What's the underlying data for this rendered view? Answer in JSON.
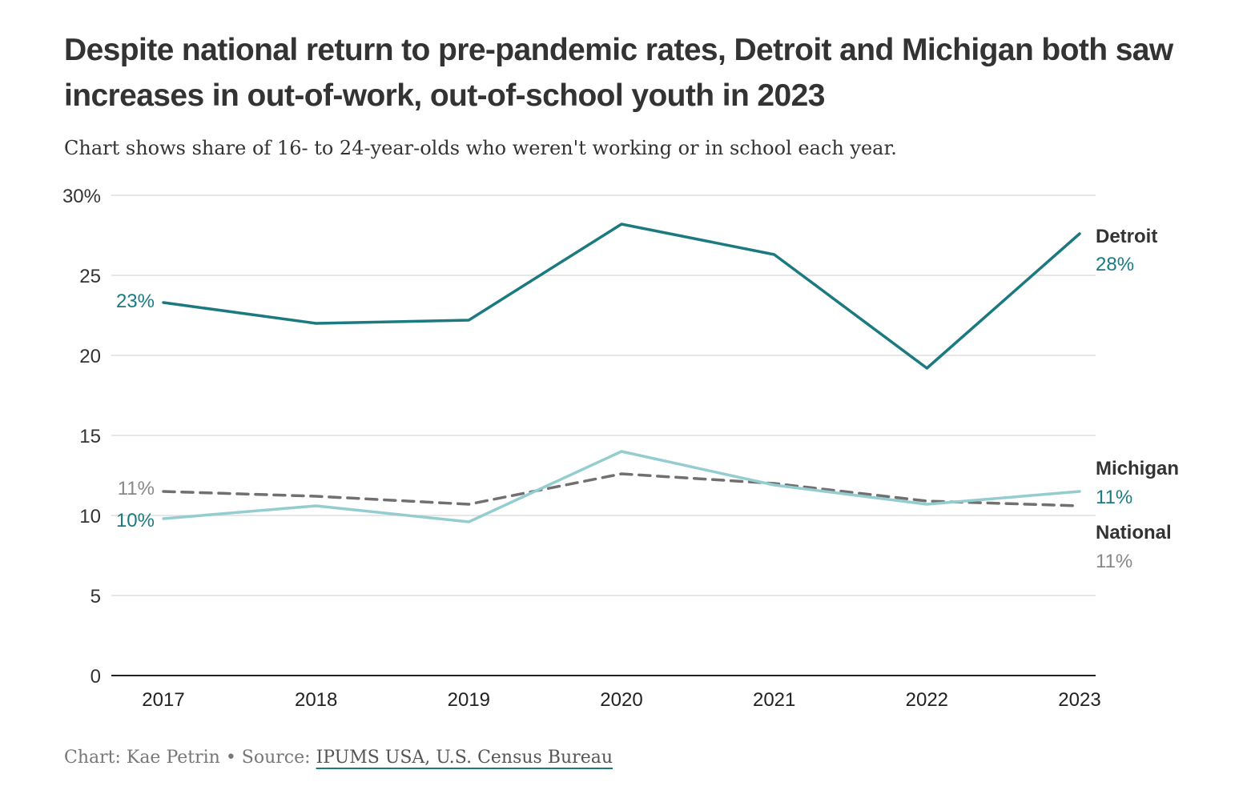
{
  "title": "Despite national return to pre-pandemic rates, Detroit and Michigan both saw increases in out-of-work, out-of-school youth in 2023",
  "subtitle": "Chart shows share of 16- to 24-year-olds who weren't working or in school each year.",
  "footer": {
    "credit": "Chart: Kae Petrin • Source: ",
    "source_link": "IPUMS USA, U.S. Census Bureau"
  },
  "chart_data": {
    "type": "line",
    "x": [
      "2017",
      "2018",
      "2019",
      "2020",
      "2021",
      "2022",
      "2023"
    ],
    "ylim": [
      0,
      30
    ],
    "yticks": [
      0,
      5,
      10,
      15,
      20,
      25,
      30
    ],
    "ytick_labels": [
      "0",
      "5",
      "10",
      "15",
      "20",
      "25",
      "30%"
    ],
    "grid": true,
    "series": [
      {
        "name": "Detroit",
        "values": [
          23.3,
          22.0,
          22.2,
          28.2,
          26.3,
          19.2,
          27.6
        ],
        "color": "#1b7a80",
        "dash": false,
        "start_label": "23%",
        "end_label": "28%"
      },
      {
        "name": "Michigan",
        "values": [
          9.8,
          10.6,
          9.6,
          14.0,
          11.9,
          10.7,
          11.5
        ],
        "color": "#94cdd0",
        "dash": false,
        "start_label": "10%",
        "end_label": "11%"
      },
      {
        "name": "National",
        "values": [
          11.5,
          11.2,
          10.7,
          12.6,
          12.0,
          10.9,
          10.6
        ],
        "color": "#707070",
        "dash": true,
        "start_label": "11%",
        "end_label": "11%"
      }
    ]
  }
}
